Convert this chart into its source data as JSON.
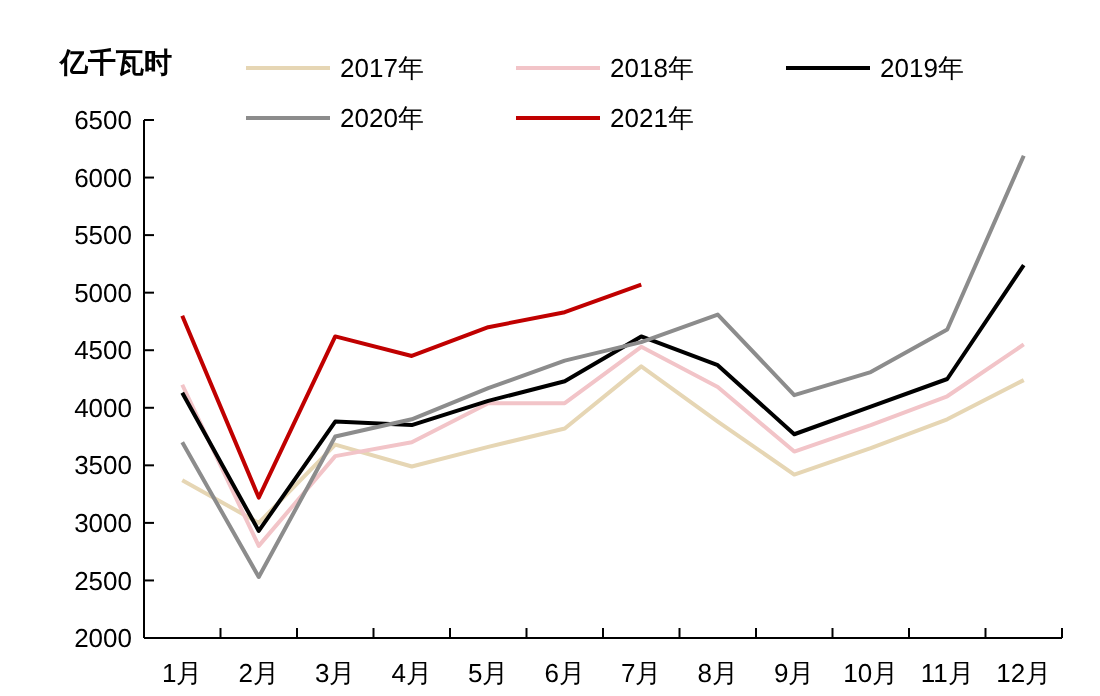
{
  "chart_data": {
    "type": "line",
    "ylabel": "亿千瓦时",
    "categories": [
      "1月",
      "2月",
      "3月",
      "4月",
      "5月",
      "6月",
      "7月",
      "8月",
      "9月",
      "10月",
      "11月",
      "12月"
    ],
    "series": [
      {
        "name": "2017年",
        "color": "#e6d6b4",
        "values": [
          3370,
          3000,
          3680,
          3490,
          3660,
          3820,
          4360,
          3880,
          3420,
          3650,
          3900,
          4240
        ]
      },
      {
        "name": "2018年",
        "color": "#f2c4c8",
        "values": [
          4200,
          2800,
          3580,
          3700,
          4040,
          4040,
          4530,
          4180,
          3620,
          3850,
          4100,
          4550
        ]
      },
      {
        "name": "2019年",
        "color": "#000000",
        "values": [
          4130,
          2930,
          3880,
          3850,
          4060,
          4230,
          4620,
          4370,
          3770,
          4010,
          4250,
          5240
        ]
      },
      {
        "name": "2020年",
        "color": "#8c8c8c",
        "values": [
          3700,
          2530,
          3750,
          3900,
          4170,
          4410,
          4570,
          4810,
          4110,
          4310,
          4680,
          6190
        ]
      },
      {
        "name": "2021年",
        "color": "#c00000",
        "values": [
          4800,
          3220,
          4620,
          4450,
          4700,
          4830,
          5070,
          null,
          null,
          null,
          null,
          null
        ]
      }
    ],
    "ylim": [
      2000,
      6500
    ],
    "yticks": [
      2000,
      2500,
      3000,
      3500,
      4000,
      4500,
      5000,
      5500,
      6000,
      6500
    ],
    "grid": false,
    "legend": "top",
    "marker": "none",
    "line_style": "solid"
  }
}
